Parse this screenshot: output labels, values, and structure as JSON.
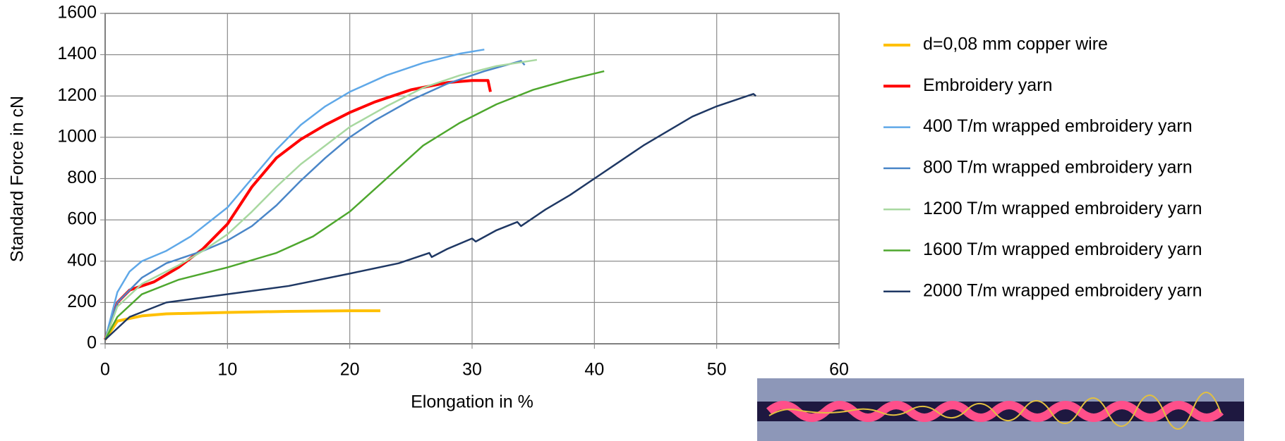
{
  "chart_data": {
    "type": "line",
    "xlabel": "Elongation in %",
    "ylabel": "Standard Force in cN",
    "xlim": [
      0,
      60
    ],
    "xticks": [
      0,
      10,
      20,
      30,
      40,
      50,
      60
    ],
    "ylim": [
      0,
      1600
    ],
    "yticks": [
      0,
      200,
      400,
      600,
      800,
      1000,
      1200,
      1400,
      1600
    ],
    "grid": true,
    "legend": "right",
    "series": [
      {
        "name": "d=0,08 mm copper wire",
        "color": "#ffc000",
        "width": 4,
        "x": [
          0,
          1,
          3,
          5,
          10,
          15,
          20,
          22.5
        ],
        "values": [
          20,
          110,
          135,
          145,
          152,
          157,
          160,
          160
        ]
      },
      {
        "name": "Embroidery yarn",
        "color": "#ff0000",
        "width": 4,
        "x": [
          0,
          1,
          2,
          4,
          6,
          8,
          10,
          12,
          14,
          16,
          18,
          20,
          22,
          25,
          28,
          30,
          31.3,
          31.5
        ],
        "values": [
          20,
          200,
          260,
          300,
          370,
          460,
          580,
          760,
          900,
          990,
          1060,
          1120,
          1170,
          1230,
          1265,
          1275,
          1275,
          1220
        ]
      },
      {
        "name": "400 T/m wrapped embroidery yarn",
        "color": "#5fa8e8",
        "width": 2.5,
        "x": [
          0,
          1,
          2,
          3,
          5,
          7,
          10,
          12,
          14,
          16,
          18,
          20,
          23,
          26,
          29,
          31
        ],
        "values": [
          20,
          250,
          350,
          400,
          450,
          520,
          660,
          800,
          940,
          1060,
          1150,
          1220,
          1300,
          1360,
          1405,
          1425
        ]
      },
      {
        "name": "800 T/m wrapped embroidery yarn",
        "color": "#4a86c8",
        "width": 2.5,
        "x": [
          0,
          1,
          3,
          5,
          8,
          10,
          12,
          14,
          16,
          18,
          20,
          22,
          25,
          28,
          31,
          34,
          34.3
        ],
        "values": [
          20,
          200,
          320,
          390,
          450,
          500,
          570,
          670,
          790,
          900,
          1000,
          1080,
          1180,
          1260,
          1320,
          1370,
          1350
        ]
      },
      {
        "name": "1200 T/m wrapped embroidery yarn",
        "color": "#a8d8a0",
        "width": 2.5,
        "x": [
          0,
          1,
          3,
          6,
          8,
          10,
          12,
          14,
          16,
          18,
          20,
          23,
          26,
          29,
          32,
          35.3
        ],
        "values": [
          20,
          180,
          290,
          380,
          450,
          530,
          640,
          760,
          870,
          960,
          1050,
          1150,
          1240,
          1300,
          1345,
          1375
        ]
      },
      {
        "name": "1600 T/m wrapped embroidery yarn",
        "color": "#4ea72e",
        "width": 2.5,
        "x": [
          0,
          1,
          3,
          6,
          10,
          14,
          17,
          20,
          23,
          26,
          29,
          32,
          35,
          38,
          40.8
        ],
        "values": [
          20,
          130,
          240,
          310,
          370,
          440,
          520,
          640,
          800,
          960,
          1070,
          1160,
          1230,
          1280,
          1320
        ]
      },
      {
        "name": "2000 T/m wrapped embroidery yarn",
        "color": "#1f3864",
        "width": 2.5,
        "x": [
          0,
          2,
          5,
          10,
          15,
          20,
          24,
          26.5,
          26.7,
          28,
          30,
          30.3,
          32,
          33.7,
          34,
          36,
          38,
          40,
          42,
          44,
          46,
          48,
          50,
          52,
          53,
          53.2
        ],
        "values": [
          20,
          130,
          200,
          240,
          280,
          340,
          390,
          440,
          420,
          460,
          510,
          495,
          550,
          590,
          570,
          650,
          720,
          800,
          880,
          960,
          1030,
          1100,
          1150,
          1190,
          1210,
          1200
        ]
      }
    ]
  }
}
